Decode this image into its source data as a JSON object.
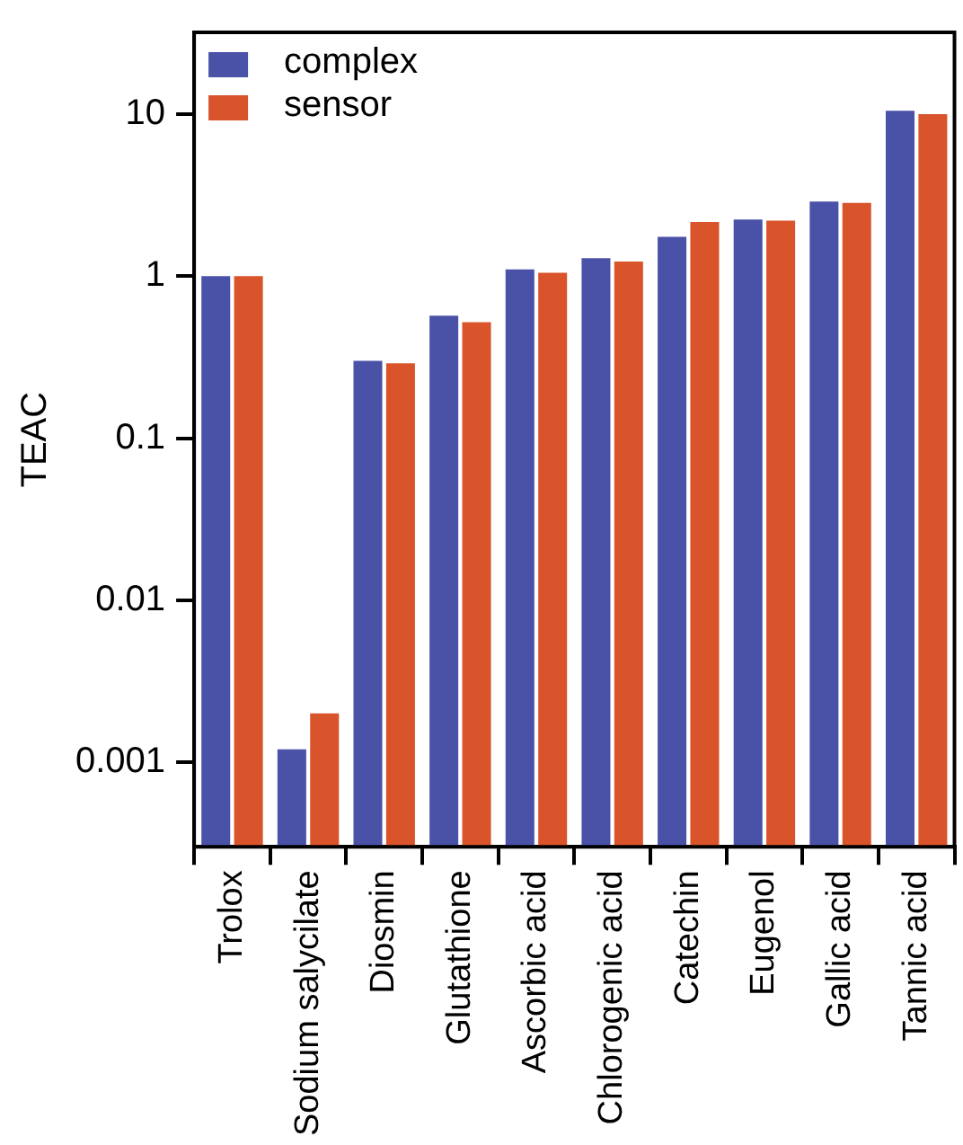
{
  "chart_data": {
    "type": "bar",
    "ylabel": "TEAC",
    "log": true,
    "legend": "top left",
    "grid": false,
    "categories": [
      "Trolox",
      "Sodium salycilate",
      "Diosmin",
      "Glutathione",
      "Ascorbic acid",
      "Chlorogenic acid",
      "Catechin",
      "Eugenol",
      "Gallic acid",
      "Tannic acid"
    ],
    "ylim": [
      0.0003,
      32
    ],
    "yticks": [
      0.001,
      0.01,
      0.1,
      1,
      10
    ],
    "series": [
      {
        "name": "complex",
        "color": "#4a52a8",
        "values": [
          1,
          0.0012,
          0.3,
          0.57,
          1.1,
          1.29,
          1.75,
          2.24,
          2.89,
          10.5
        ]
      },
      {
        "name": "sensor",
        "color": "#d9532b",
        "values": [
          1,
          0.002,
          0.29,
          0.52,
          1.05,
          1.23,
          2.16,
          2.2,
          2.83,
          10
        ]
      }
    ]
  }
}
